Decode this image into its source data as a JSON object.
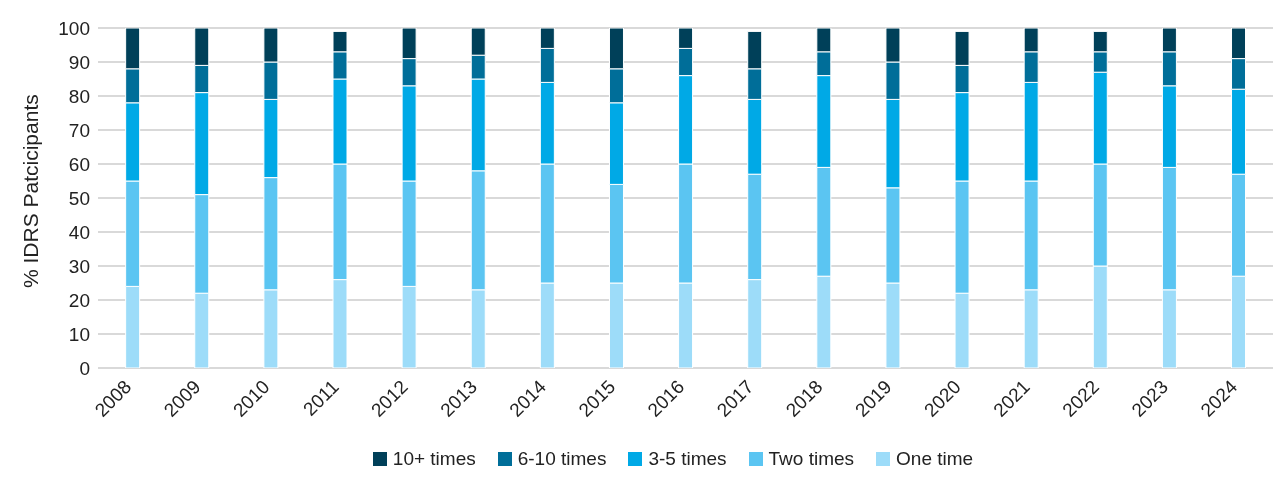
{
  "chart_data": {
    "type": "bar",
    "stacked": true,
    "ylabel": "% IDRS Patcicipants",
    "categories": [
      "2008",
      "2009",
      "2010",
      "2011",
      "2012",
      "2013",
      "2014",
      "2015",
      "2016",
      "2017",
      "2018",
      "2019",
      "2020",
      "2021",
      "2022",
      "2023",
      "2024"
    ],
    "series": [
      {
        "name": "One time",
        "color": "#9ddcf9",
        "values": [
          24,
          22,
          23,
          26,
          24,
          23,
          25,
          25,
          25,
          26,
          27,
          25,
          22,
          23,
          30,
          23,
          27
        ]
      },
      {
        "name": "Two times",
        "color": "#5bc5f2",
        "values": [
          31,
          29,
          33,
          34,
          31,
          35,
          35,
          29,
          35,
          31,
          32,
          28,
          33,
          32,
          30,
          36,
          30
        ]
      },
      {
        "name": "3-5 times",
        "color": "#00a9e6",
        "values": [
          23,
          30,
          23,
          25,
          28,
          27,
          24,
          24,
          26,
          22,
          27,
          26,
          26,
          29,
          27,
          24,
          25
        ]
      },
      {
        "name": "6-10 times",
        "color": "#006e99",
        "values": [
          10,
          8,
          11,
          8,
          8,
          7,
          10,
          10,
          8,
          9,
          7,
          11,
          8,
          9,
          6,
          10,
          9
        ]
      },
      {
        "name": "10+ times",
        "color": "#004059",
        "values": [
          12,
          11,
          10,
          6,
          9,
          8,
          6,
          12,
          6,
          11,
          7,
          10,
          10,
          7,
          6,
          7,
          9
        ]
      }
    ],
    "ylim": [
      0,
      100
    ],
    "yticks": [
      0,
      10,
      20,
      30,
      40,
      50,
      60,
      70,
      80,
      90,
      100
    ],
    "grid": "y",
    "legend": "bottom"
  }
}
